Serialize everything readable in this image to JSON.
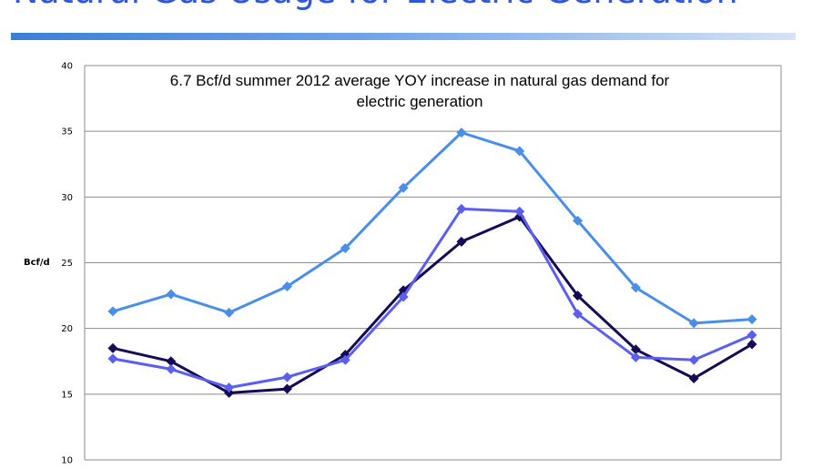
{
  "slide": {
    "title": "Natural Gas Usage for Electric Generation"
  },
  "chart_data": {
    "type": "line",
    "title_line1": "6.7 Bcf/d summer 2012 average YOY increase in natural gas demand for",
    "title_line2": "electric generation",
    "xlabel": "",
    "ylabel": "Bcf/d",
    "ylim": [
      10,
      40
    ],
    "yticks": [
      10,
      15,
      20,
      25,
      30,
      35,
      40
    ],
    "grid": true,
    "x": [
      1,
      2,
      3,
      4,
      5,
      6,
      7,
      8,
      9,
      10,
      11,
      12
    ],
    "series": [
      {
        "color": "#4a8fe7",
        "values": [
          21.3,
          22.6,
          21.2,
          23.2,
          26.1,
          30.7,
          34.9,
          33.5,
          28.2,
          23.1,
          20.4,
          20.7
        ]
      },
      {
        "color": "#150b55",
        "values": [
          18.5,
          17.5,
          15.1,
          15.4,
          18.0,
          22.9,
          26.6,
          28.5,
          22.5,
          18.4,
          16.2,
          18.8
        ]
      },
      {
        "color": "#5a5ff0",
        "values": [
          17.7,
          16.9,
          15.5,
          16.3,
          17.6,
          22.4,
          29.1,
          28.9,
          21.1,
          17.8,
          17.6,
          19.5
        ]
      }
    ]
  }
}
